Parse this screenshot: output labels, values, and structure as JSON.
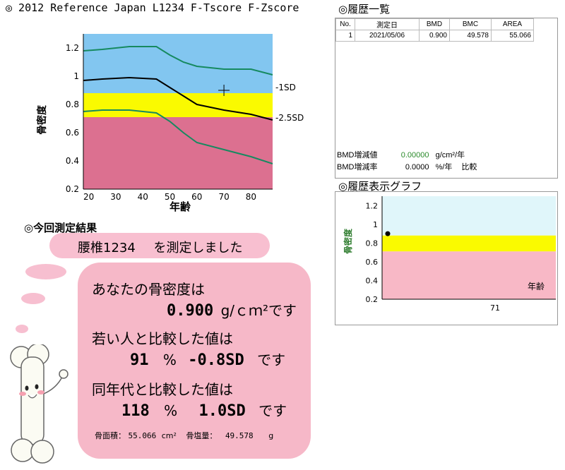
{
  "reference": {
    "title": "◎ 2012 Reference Japan L1234 F-Tscore F-Zscore",
    "ylabel": "骨密度",
    "xlabel": "年齢",
    "y_ticks": [
      "1.2",
      "1",
      "0.8",
      "0.6",
      "0.4",
      "0.2"
    ],
    "x_ticks": [
      "20",
      "30",
      "40",
      "50",
      "60",
      "70",
      "80"
    ],
    "band_labels": [
      "-1SD",
      "-2.5SD"
    ],
    "colors": {
      "normal": "#82c6f0",
      "osteopenia": "#fafa00",
      "osteoporosis": "#dc7090",
      "curve_green": "#168a60",
      "curve_black": "#000000"
    },
    "marker": {
      "age": 70,
      "bmd": 0.9
    }
  },
  "history": {
    "title": "◎履歴一覧",
    "columns": [
      "No.",
      "測定日",
      "BMD",
      "BMC",
      "AREA"
    ],
    "rows": [
      {
        "no": "1",
        "date": "2021/05/06",
        "bmd": "0.900",
        "bmc": "49.578",
        "area": "55.066"
      }
    ],
    "stats": {
      "bmd_change_label": "BMD増減値",
      "bmd_change_value": "0.00000",
      "bmd_change_unit": "g/cm²/年",
      "bmd_rate_label": "BMD増減率",
      "bmd_rate_value": "0.0000",
      "bmd_rate_unit": "%/年",
      "compare_label": "比較"
    }
  },
  "history_graph": {
    "title": "◎履歴表示グラフ",
    "ylabel": "骨密度",
    "age_label": "年齢",
    "y_ticks": [
      "1.2",
      "1",
      "0.8",
      "0.6",
      "0.4",
      "0.2"
    ],
    "x_tick": "71",
    "points": [
      {
        "bmd": 0.9
      }
    ]
  },
  "result": {
    "title": "◎今回測定結果",
    "site_label": "腰椎1234",
    "site_suffix": "を測定しました",
    "bmd_caption": "あなたの骨密度は",
    "bmd_value": "0.900",
    "bmd_unit": "g/ｃｍ²です",
    "young_caption": "若い人と比較した値は",
    "young_percent": "91",
    "young_percent_unit": "%",
    "young_sd": "-0.8SD",
    "young_suffix": "です",
    "age_caption": "同年代と比較した値は",
    "age_percent": "118",
    "age_percent_unit": "%",
    "age_sd": "1.0SD",
    "age_suffix": "です",
    "area_label": "骨面積：",
    "area_value": "55.066",
    "area_unit": "cm²",
    "bmc_label": "骨塩量：",
    "bmc_value": "49.578",
    "bmc_unit": "g"
  }
}
